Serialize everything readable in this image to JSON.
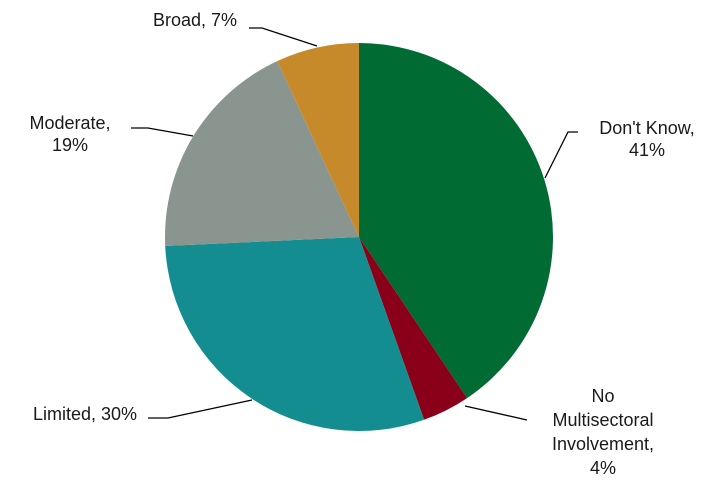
{
  "chart_data": {
    "type": "pie",
    "title": "",
    "slices": [
      {
        "label": "Don't Know",
        "value": 41,
        "display": "41%",
        "color": "#006B33"
      },
      {
        "label": "No Multisectoral Involvement",
        "value": 4,
        "display": "4%",
        "color": "#8B0019"
      },
      {
        "label": "Limited",
        "value": 30,
        "display": "30%",
        "color": "#148D91"
      },
      {
        "label": "Moderate",
        "value": 19,
        "display": "19%",
        "color": "#8A9590"
      },
      {
        "label": "Broad",
        "value": 7,
        "display": "7%",
        "color": "#C68A2B"
      }
    ],
    "start_angle_deg": 0,
    "direction": "clockwise",
    "data_labels": [
      {
        "lines": [
          "Don't Know,",
          "41%"
        ]
      },
      {
        "lines": [
          "No",
          "Multisectoral",
          "Involvement,",
          "4%"
        ]
      },
      {
        "lines": [
          "Limited, 30%"
        ]
      },
      {
        "lines": [
          "Moderate,",
          "19%"
        ]
      },
      {
        "lines": [
          "Broad, 7%"
        ]
      }
    ],
    "legend": "none"
  }
}
